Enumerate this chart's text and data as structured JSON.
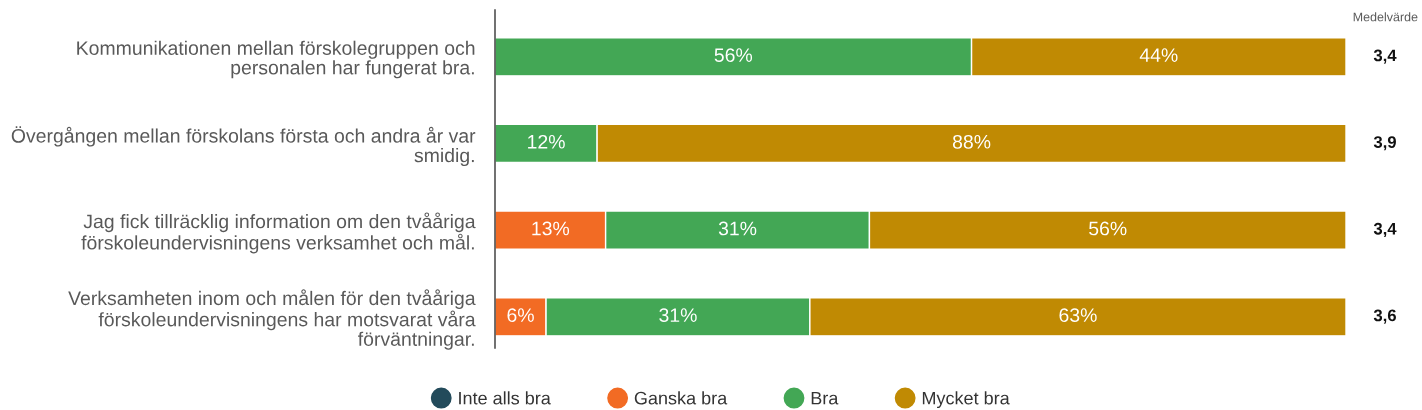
{
  "chart_data": {
    "type": "bar",
    "orientation": "horizontal",
    "stacked": true,
    "categories": [
      "Kommunikationen mellan förskolegruppen och personalen har fungerat bra.",
      "Övergången mellan förskolans första och andra år var smidig.",
      "Jag fick tillräcklig information om den tvååriga förskoleundervisningens verksamhet och mål.",
      "Verksamheten inom och målen för den tvååriga förskoleundervisningens har motsvarat våra förväntningar."
    ],
    "series": [
      {
        "name": "Inte alls bra",
        "color": "#234b5b",
        "values": [
          null,
          null,
          null,
          null
        ]
      },
      {
        "name": "Ganska bra",
        "color": "#f26b24",
        "values": [
          null,
          null,
          13,
          6
        ],
        "value_labels": [
          null,
          null,
          "13%",
          "6%"
        ]
      },
      {
        "name": "Bra",
        "color": "#43a755",
        "values": [
          56,
          12,
          31,
          31
        ],
        "value_labels": [
          "56%",
          "12%",
          "31%",
          "31%"
        ]
      },
      {
        "name": "Mycket bra",
        "color": "#c08a03",
        "values": [
          44,
          88,
          56,
          63
        ],
        "value_labels": [
          "44%",
          "88%",
          "56%",
          "63%"
        ]
      }
    ],
    "xlim": [
      0,
      100
    ],
    "tick_labels": "y",
    "legend": "bottom",
    "annotations": [
      "Medelvärde",
      "3,4",
      "3,9",
      "3,4",
      "3,6"
    ]
  }
}
